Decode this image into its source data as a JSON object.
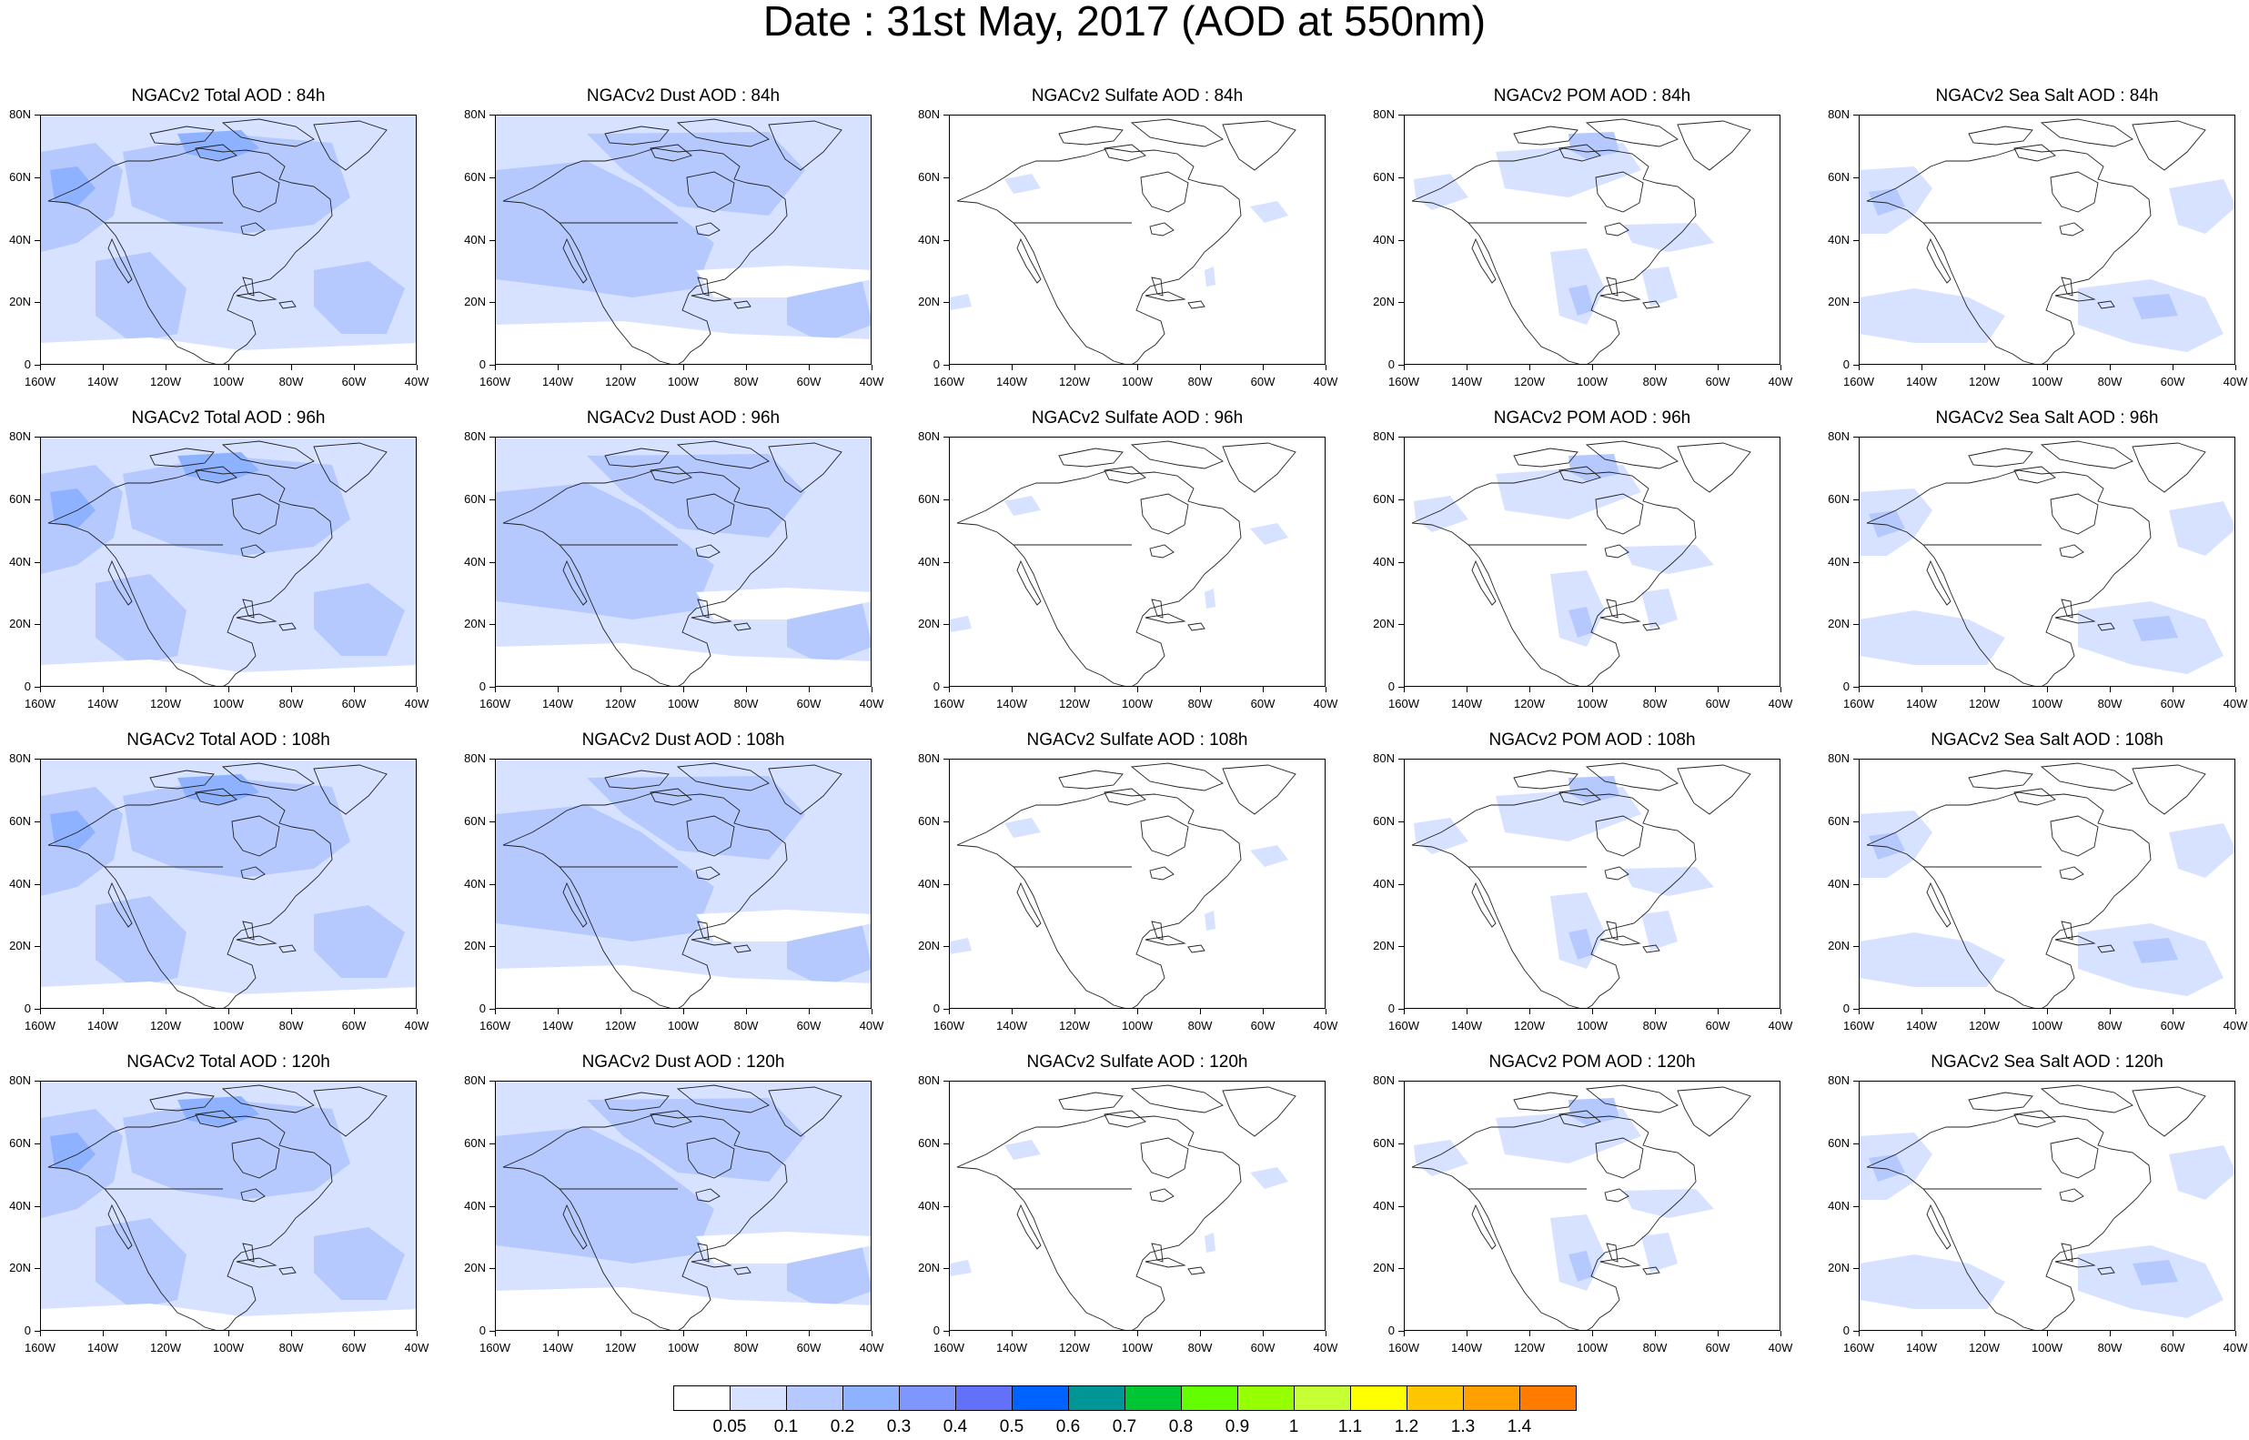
{
  "title": "Date : 31st May, 2017 (AOD at 550nm)",
  "lat_labels": [
    "80N",
    "60N",
    "40N",
    "20N",
    "0"
  ],
  "lon_labels": [
    "160W",
    "140W",
    "120W",
    "100W",
    "80W",
    "60W",
    "40W"
  ],
  "rows": [
    "84h",
    "96h",
    "108h",
    "120h"
  ],
  "panel_titles": [
    [
      "NGACv2 Total AOD : 84h",
      "NGACv2 Dust AOD : 84h",
      "NGACv2 Sulfate AOD : 84h",
      "NGACv2 POM AOD : 84h",
      "NGACv2 Sea Salt AOD : 84h"
    ],
    [
      "NGACv2 Total AOD : 96h",
      "NGACv2 Dust AOD : 96h",
      "NGACv2 Sulfate AOD : 96h",
      "NGACv2 POM AOD : 96h",
      "NGACv2 Sea Salt AOD : 96h"
    ],
    [
      "NGACv2 Total AOD : 108h",
      "NGACv2 Dust AOD : 108h",
      "NGACv2 Sulfate AOD : 108h",
      "NGACv2 POM AOD : 108h",
      "NGACv2 Sea Salt AOD : 108h"
    ],
    [
      "NGACv2 Total AOD : 120h",
      "NGACv2 Dust AOD : 120h",
      "NGACv2 Sulfate AOD : 120h",
      "NGACv2 POM AOD : 120h",
      "NGACv2 Sea Salt  AOD : 120h"
    ]
  ],
  "colorbar": {
    "labels": [
      "0.05",
      "0.1",
      "0.2",
      "0.3",
      "0.4",
      "0.5",
      "0.6",
      "0.7",
      "0.8",
      "0.9",
      "1",
      "1.1",
      "1.2",
      "1.3",
      "1.4"
    ],
    "colors": [
      "#ffffff",
      "#d6e2ff",
      "#b5c9ff",
      "#8eb2ff",
      "#7f96ff",
      "#6370f8",
      "#0063ff",
      "#009696",
      "#00c633",
      "#63ff00",
      "#96ff00",
      "#c6ff33",
      "#ffff00",
      "#ffc600",
      "#ffa000",
      "#ff7c00",
      "#ff1900"
    ]
  },
  "fill_colors": {
    "level1": "#d6e2ff",
    "level2": "#b5c9ff",
    "level3": "#8eb2ff",
    "level4": "#7f96ff",
    "level5": "#6370f8"
  },
  "species": [
    "Total",
    "Dust",
    "Sulfate",
    "POM",
    "Sea Salt"
  ]
}
